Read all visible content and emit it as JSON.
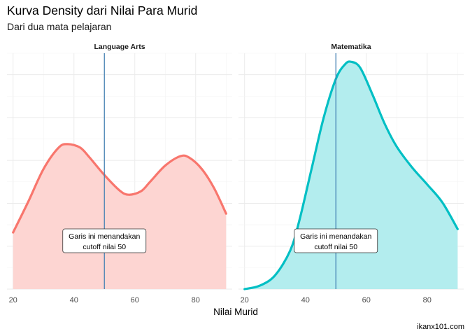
{
  "chart_data": {
    "type": "area",
    "title": "Kurva Density dari Nilai Para Murid",
    "subtitle": "Dari dua mata pelajaran",
    "xlabel": "Nilai Murid",
    "ylabel": "",
    "caption": "ikanx101.com",
    "xlim": [
      18,
      92
    ],
    "ylim": [
      0,
      0.0275
    ],
    "xticks": [
      20,
      40,
      60,
      80
    ],
    "grid": true,
    "legend": "none",
    "cutoff": 50,
    "annotation": [
      "Garis ini menandakan",
      "cutoff nilai 50"
    ],
    "panels": [
      {
        "name": "Language Arts",
        "color": "#F8766D",
        "fill": "#FDD5D2",
        "x": [
          20,
          25,
          30,
          35,
          38,
          42,
          45,
          50,
          55,
          58,
          62,
          65,
          70,
          75,
          78,
          82,
          86,
          90
        ],
        "y": [
          0.0066,
          0.0102,
          0.014,
          0.0165,
          0.0169,
          0.0165,
          0.0154,
          0.0133,
          0.0115,
          0.011,
          0.0114,
          0.0125,
          0.0144,
          0.0155,
          0.0153,
          0.014,
          0.0118,
          0.0088
        ]
      },
      {
        "name": "Matematika",
        "color": "#00BFC4",
        "fill": "#B3EDEE",
        "x": [
          20,
          25,
          30,
          35,
          38,
          42,
          46,
          50,
          53,
          55,
          58,
          62,
          66,
          70,
          75,
          80,
          85,
          90
        ],
        "y": [
          0.0,
          0.0004,
          0.0016,
          0.0045,
          0.008,
          0.014,
          0.02,
          0.0245,
          0.0262,
          0.0265,
          0.0258,
          0.0227,
          0.0193,
          0.0166,
          0.0142,
          0.0122,
          0.0101,
          0.007
        ]
      }
    ]
  }
}
